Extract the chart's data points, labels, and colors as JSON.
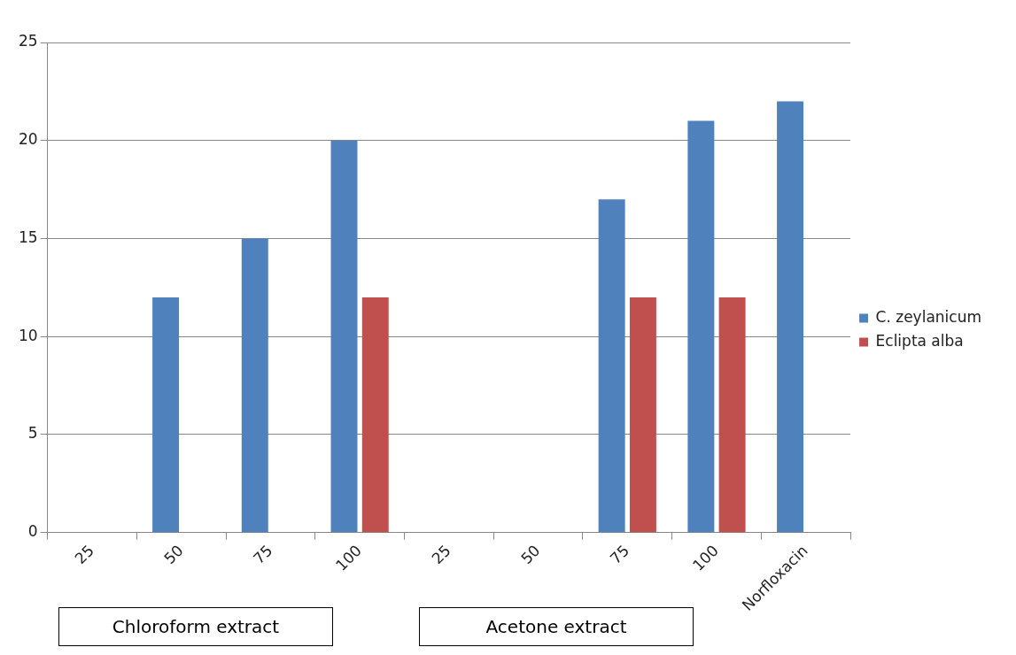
{
  "chart_data": {
    "type": "bar",
    "categories": [
      "25",
      "50",
      "75",
      "100",
      "25",
      "50",
      "75",
      "100",
      "Norfloxacin"
    ],
    "series": [
      {
        "name": "C. zeylanicum",
        "color": "#4f81bd",
        "values": [
          0,
          12,
          15,
          20,
          0,
          0,
          17,
          21,
          22
        ]
      },
      {
        "name": "Eclipta alba",
        "color": "#c0504d",
        "values": [
          0,
          0,
          0,
          12,
          0,
          0,
          12,
          12,
          0
        ]
      }
    ],
    "ylim": [
      0,
      25
    ],
    "yticks": [
      0,
      5,
      10,
      15,
      20,
      25
    ],
    "grid": "y",
    "legend": "right",
    "annotations": [
      "Chloroform extract",
      "Acetone extract"
    ]
  }
}
